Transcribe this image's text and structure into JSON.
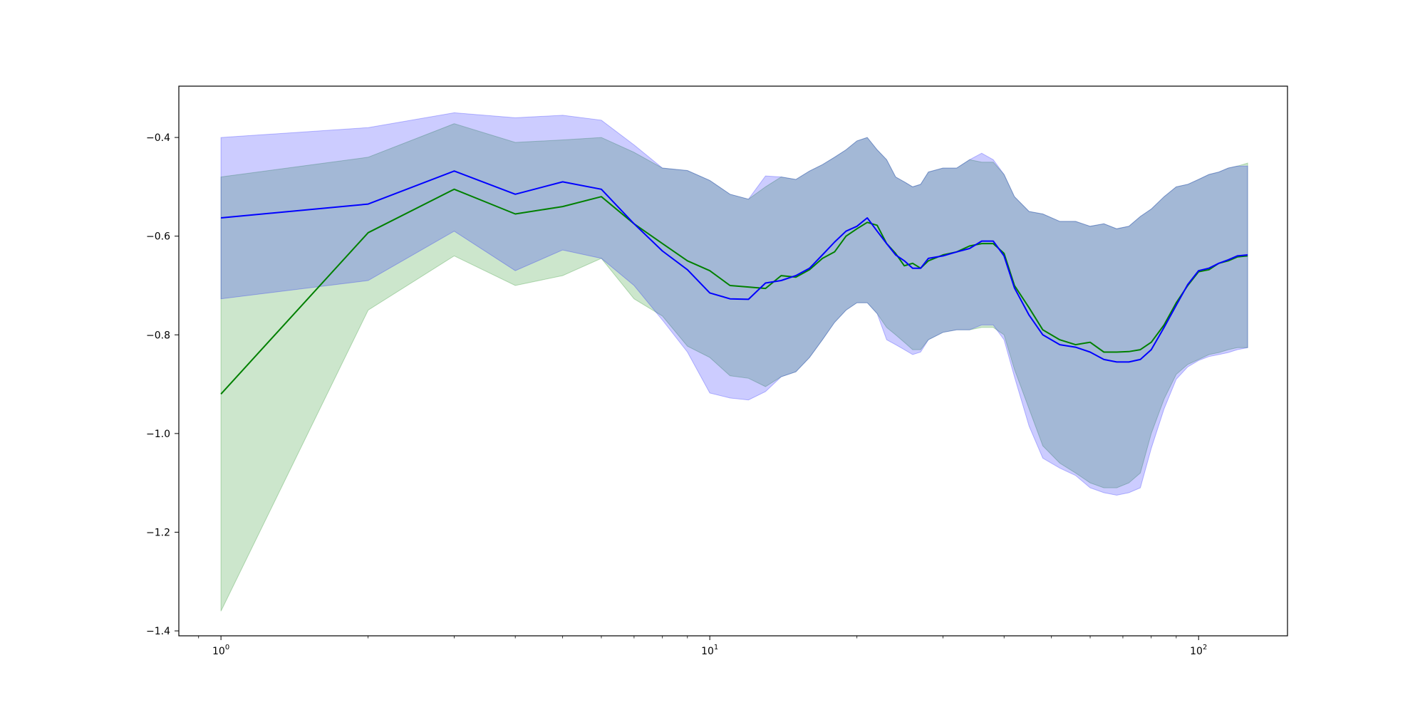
{
  "chart_data": {
    "type": "line",
    "title": "",
    "xlabel": "",
    "ylabel": "",
    "xscale": "log",
    "xlim": [
      0.82,
      152
    ],
    "ylim": [
      -1.41,
      -0.296
    ],
    "grid": false,
    "legend": "none",
    "x_ticks": [
      {
        "value": 1,
        "base": "10",
        "exp": "0"
      },
      {
        "value": 10,
        "base": "10",
        "exp": "1"
      },
      {
        "value": 100,
        "base": "10",
        "exp": "2"
      }
    ],
    "y_ticks": [
      {
        "value": -0.4,
        "label": "−0.4"
      },
      {
        "value": -0.6,
        "label": "−0.6"
      },
      {
        "value": -0.8,
        "label": "−0.8"
      },
      {
        "value": -1.0,
        "label": "−1.0"
      },
      {
        "value": -1.2,
        "label": "−1.2"
      },
      {
        "value": -1.4,
        "label": "−1.4"
      }
    ],
    "series": [
      {
        "color": "#008000",
        "band_color": "#008000",
        "band_opacity": 0.2,
        "x": [
          1,
          2,
          3,
          4,
          5,
          6,
          7,
          8,
          9,
          10,
          11,
          12,
          13,
          14,
          15,
          16,
          17,
          18,
          19,
          20,
          21,
          22,
          23,
          24,
          25,
          26,
          27,
          28,
          30,
          32,
          34,
          36,
          38,
          40,
          42,
          45,
          48,
          52,
          56,
          60,
          64,
          68,
          72,
          76,
          80,
          85,
          90,
          95,
          100,
          105,
          110,
          115,
          120,
          126
        ],
        "mean": [
          -0.92,
          -0.593,
          -0.505,
          -0.555,
          -0.54,
          -0.52,
          -0.575,
          -0.615,
          -0.65,
          -0.67,
          -0.7,
          -0.703,
          -0.706,
          -0.68,
          -0.683,
          -0.668,
          -0.645,
          -0.632,
          -0.6,
          -0.585,
          -0.572,
          -0.578,
          -0.615,
          -0.635,
          -0.66,
          -0.655,
          -0.665,
          -0.65,
          -0.638,
          -0.632,
          -0.62,
          -0.615,
          -0.615,
          -0.635,
          -0.7,
          -0.745,
          -0.79,
          -0.81,
          -0.82,
          -0.815,
          -0.835,
          -0.835,
          -0.834,
          -0.83,
          -0.815,
          -0.78,
          -0.735,
          -0.7,
          -0.672,
          -0.668,
          -0.655,
          -0.65,
          -0.642,
          -0.64
        ],
        "upper": [
          -0.727,
          -0.69,
          -0.59,
          -0.67,
          -0.625,
          -0.645,
          -0.715,
          -0.762,
          -0.823,
          -0.846,
          -0.883,
          -0.888,
          -0.905,
          -0.885,
          -0.875,
          -0.846,
          -0.81,
          -0.775,
          -0.75,
          -0.735,
          -0.735,
          -0.757,
          -0.785,
          -0.8,
          -0.815,
          -0.83,
          -0.83,
          -0.81,
          -0.795,
          -0.79,
          -0.79,
          -0.785,
          -0.785,
          -0.8,
          -0.87,
          -0.95,
          -1.025,
          -1.06,
          -1.08,
          -1.1,
          -1.11,
          -1.11,
          -1.1,
          -1.08,
          -1.0,
          -0.93,
          -0.88,
          -0.86,
          -0.85,
          -0.84,
          -0.836,
          -0.83,
          -0.826,
          -0.826
        ],
        "lower": [
          -1.36,
          -0.75,
          -0.64,
          -0.7,
          -0.68,
          -0.645,
          -0.727,
          -0.762,
          -0.823,
          -0.846,
          -0.883,
          -0.888,
          -0.905,
          -0.885,
          -0.875,
          -0.846,
          -0.81,
          -0.775,
          -0.75,
          -0.735,
          -0.735,
          -0.757,
          -0.785,
          -0.8,
          -0.815,
          -0.83,
          -0.83,
          -0.81,
          -0.795,
          -0.79,
          -0.79,
          -0.785,
          -0.785,
          -0.8,
          -0.87,
          -0.95,
          -1.025,
          -1.06,
          -1.08,
          -1.1,
          -1.11,
          -1.11,
          -1.1,
          -1.08,
          -1.0,
          -0.93,
          -0.88,
          -0.86,
          -0.85,
          -0.84,
          -0.836,
          -0.83,
          -0.826,
          -0.826
        ],
        "top": [
          -0.48,
          -0.44,
          -0.372,
          -0.41,
          -0.405,
          -0.4,
          -0.43,
          -0.462,
          -0.467,
          -0.487,
          -0.515,
          -0.525,
          -0.5,
          -0.48,
          -0.485,
          -0.468,
          -0.455,
          -0.44,
          -0.425,
          -0.407,
          -0.4,
          -0.425,
          -0.445,
          -0.48,
          -0.49,
          -0.5,
          -0.495,
          -0.47,
          -0.462,
          -0.462,
          -0.445,
          -0.45,
          -0.45,
          -0.475,
          -0.52,
          -0.55,
          -0.555,
          -0.57,
          -0.57,
          -0.58,
          -0.575,
          -0.585,
          -0.58,
          -0.56,
          -0.545,
          -0.52,
          -0.5,
          -0.495,
          -0.485,
          -0.475,
          -0.47,
          -0.462,
          -0.458,
          -0.452
        ]
      },
      {
        "color": "#0000ff",
        "band_color": "#0000ff",
        "band_opacity": 0.2,
        "x": [
          1,
          2,
          3,
          4,
          5,
          6,
          7,
          8,
          9,
          10,
          11,
          12,
          13,
          14,
          15,
          16,
          17,
          18,
          19,
          20,
          21,
          22,
          23,
          24,
          25,
          26,
          27,
          28,
          30,
          32,
          34,
          36,
          38,
          40,
          42,
          45,
          48,
          52,
          56,
          60,
          64,
          68,
          72,
          76,
          80,
          85,
          90,
          95,
          100,
          105,
          110,
          115,
          120,
          126
        ],
        "mean": [
          -0.563,
          -0.535,
          -0.468,
          -0.515,
          -0.49,
          -0.505,
          -0.575,
          -0.63,
          -0.668,
          -0.715,
          -0.727,
          -0.728,
          -0.695,
          -0.69,
          -0.68,
          -0.665,
          -0.638,
          -0.612,
          -0.59,
          -0.58,
          -0.563,
          -0.59,
          -0.615,
          -0.638,
          -0.65,
          -0.665,
          -0.665,
          -0.645,
          -0.64,
          -0.632,
          -0.625,
          -0.61,
          -0.61,
          -0.64,
          -0.705,
          -0.76,
          -0.8,
          -0.82,
          -0.825,
          -0.835,
          -0.85,
          -0.855,
          -0.855,
          -0.85,
          -0.83,
          -0.785,
          -0.74,
          -0.698,
          -0.67,
          -0.665,
          -0.655,
          -0.648,
          -0.64,
          -0.638
        ],
        "upper": [
          -0.4,
          -0.38,
          -0.35,
          -0.36,
          -0.355,
          -0.365,
          -0.415,
          -0.462,
          -0.467,
          -0.487,
          -0.515,
          -0.525,
          -0.478,
          -0.48,
          -0.485,
          -0.468,
          -0.455,
          -0.44,
          -0.425,
          -0.407,
          -0.4,
          -0.425,
          -0.445,
          -0.48,
          -0.49,
          -0.5,
          -0.495,
          -0.47,
          -0.462,
          -0.462,
          -0.445,
          -0.432,
          -0.445,
          -0.475,
          -0.52,
          -0.55,
          -0.555,
          -0.57,
          -0.57,
          -0.58,
          -0.575,
          -0.585,
          -0.58,
          -0.56,
          -0.545,
          -0.52,
          -0.5,
          -0.495,
          -0.485,
          -0.475,
          -0.47,
          -0.462,
          -0.458,
          -0.458
        ],
        "lower": [
          -0.727,
          -0.69,
          -0.59,
          -0.67,
          -0.628,
          -0.645,
          -0.7,
          -0.77,
          -0.835,
          -0.918,
          -0.928,
          -0.932,
          -0.915,
          -0.885,
          -0.875,
          -0.846,
          -0.81,
          -0.775,
          -0.75,
          -0.735,
          -0.735,
          -0.757,
          -0.81,
          -0.82,
          -0.83,
          -0.84,
          -0.835,
          -0.81,
          -0.795,
          -0.79,
          -0.79,
          -0.78,
          -0.78,
          -0.81,
          -0.885,
          -0.985,
          -1.05,
          -1.07,
          -1.085,
          -1.11,
          -1.12,
          -1.125,
          -1.12,
          -1.11,
          -1.03,
          -0.95,
          -0.89,
          -0.865,
          -0.852,
          -0.844,
          -0.84,
          -0.836,
          -0.83,
          -0.826
        ]
      }
    ]
  }
}
